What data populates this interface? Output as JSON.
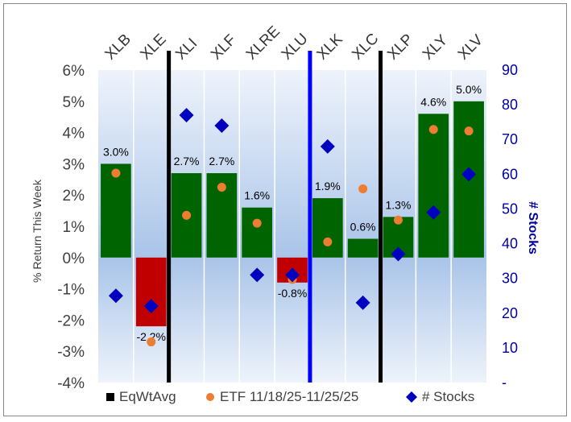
{
  "chart_data": {
    "type": "bar",
    "categories": [
      "XLB",
      "XLE",
      "XLI",
      "XLF",
      "XLRE",
      "XLU",
      "XLK",
      "XLC",
      "XLP",
      "XLY",
      "XLV"
    ],
    "series": [
      {
        "name": "EqWtAvg",
        "kind": "bar",
        "axis": "left",
        "values": [
          3.0,
          -2.2,
          2.7,
          2.7,
          1.6,
          -0.8,
          1.9,
          0.6,
          1.3,
          4.6,
          5.0
        ],
        "labels": [
          "3.0%",
          "-2.2%",
          "2.7%",
          "2.7%",
          "1.6%",
          "-0.8%",
          "1.9%",
          "0.6%",
          "1.3%",
          "4.6%",
          "5.0%"
        ],
        "positive_color": "#006400",
        "negative_color": "#c00000",
        "legend_color": "#000000"
      },
      {
        "name": "ETF 11/18/25-11/25/25",
        "kind": "scatter",
        "axis": "left",
        "values": [
          2.7,
          -2.7,
          1.35,
          2.25,
          1.1,
          -0.7,
          0.5,
          2.2,
          1.2,
          4.1,
          4.05
        ],
        "color": "#ed7d31"
      },
      {
        "name": "# Stocks",
        "kind": "scatter",
        "axis": "right",
        "values": [
          25,
          22,
          77,
          74,
          31,
          31,
          68,
          23,
          37,
          49,
          60
        ],
        "color": "#0000c0"
      }
    ],
    "ylabel": "% Return This Week",
    "y2label": "# Stocks",
    "ylim": [
      -4,
      6
    ],
    "y2lim": [
      0,
      90
    ],
    "yticks": [
      "-4%",
      "-3%",
      "-2%",
      "-1%",
      "0%",
      "1%",
      "2%",
      "3%",
      "4%",
      "5%",
      "6%"
    ],
    "y2ticks": [
      "-",
      "10",
      "20",
      "30",
      "40",
      "50",
      "60",
      "70",
      "80",
      "90"
    ],
    "y2tick_values": [
      0,
      10,
      20,
      30,
      40,
      50,
      60,
      70,
      80,
      90
    ],
    "dividers": [
      {
        "after_category": "XLE",
        "color": "#000000"
      },
      {
        "after_category": "XLU",
        "color": "#0000ff"
      },
      {
        "after_category": "XLC",
        "color": "#000000"
      }
    ],
    "legend_position": "bottom",
    "plot_gradient": [
      "#a9c4e8",
      "#eef3fb"
    ],
    "label_color_right_axis": "#0000a0"
  }
}
